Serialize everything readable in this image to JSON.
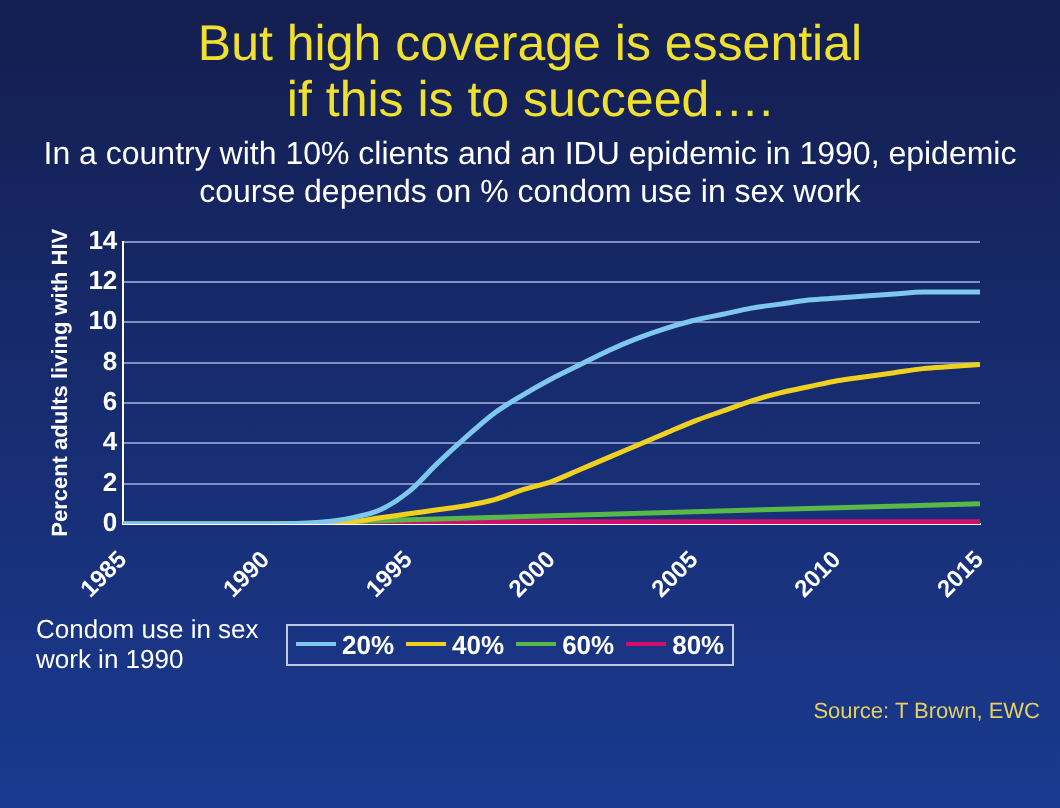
{
  "chart_data": {
    "type": "line",
    "title": "But high coverage is essential if this is to succeed….",
    "subtitle": "In a country with 10% clients and an IDU epidemic in 1990, epidemic course depends on % condom use in sex work",
    "ylabel": "Percent adults living with HIV",
    "legend_title": "Condom use in sex work in 1990",
    "annotations": [
      "Source: T Brown, EWC"
    ],
    "xlim": [
      1985,
      2015
    ],
    "xticks": [
      1985,
      1990,
      1995,
      2000,
      2005,
      2010,
      2015
    ],
    "ylim": [
      0,
      14
    ],
    "yticks": [
      0,
      2,
      4,
      6,
      8,
      10,
      12,
      14
    ],
    "grid": "y",
    "legend": "bottom",
    "marker": "none",
    "line_style": "solid",
    "series": [
      {
        "name": "20%",
        "color": "#7ec8f0",
        "x": [
          1985,
          1990,
          1992,
          1993,
          1994,
          1995,
          1996,
          1997,
          1998,
          1999,
          2000,
          2001,
          2002,
          2003,
          2004,
          2005,
          2006,
          2007,
          2008,
          2009,
          2010,
          2011,
          2012,
          2013,
          2014,
          2015
        ],
        "values": [
          0,
          0,
          0.1,
          0.3,
          0.7,
          1.6,
          3.0,
          4.3,
          5.5,
          6.4,
          7.2,
          7.9,
          8.6,
          9.2,
          9.7,
          10.1,
          10.4,
          10.7,
          10.9,
          11.1,
          11.2,
          11.3,
          11.4,
          11.5,
          11.5,
          11.5
        ]
      },
      {
        "name": "40%",
        "color": "#f0d020",
        "x": [
          1985,
          1990,
          1993,
          1994,
          1995,
          1996,
          1997,
          1998,
          1999,
          2000,
          2001,
          2002,
          2003,
          2004,
          2005,
          2006,
          2007,
          2008,
          2009,
          2010,
          2011,
          2012,
          2013,
          2014,
          2015
        ],
        "values": [
          0,
          0,
          0.1,
          0.3,
          0.5,
          0.7,
          0.9,
          1.2,
          1.7,
          2.1,
          2.7,
          3.3,
          3.9,
          4.5,
          5.1,
          5.6,
          6.1,
          6.5,
          6.8,
          7.1,
          7.3,
          7.5,
          7.7,
          7.8,
          7.9
        ]
      },
      {
        "name": "60%",
        "color": "#58b848",
        "x": [
          1985,
          1990,
          1993,
          1995,
          2000,
          2005,
          2010,
          2015
        ],
        "values": [
          0,
          0,
          null,
          0.2,
          0.4,
          0.6,
          0.8,
          1.0
        ]
      },
      {
        "name": "80%",
        "color": "#d0106a",
        "x": [
          1985,
          1990,
          1993,
          1995,
          2000,
          2005,
          2010,
          2015
        ],
        "values": [
          0,
          0,
          null,
          0.1,
          0.1,
          0.1,
          0.1,
          0.1
        ]
      }
    ]
  }
}
